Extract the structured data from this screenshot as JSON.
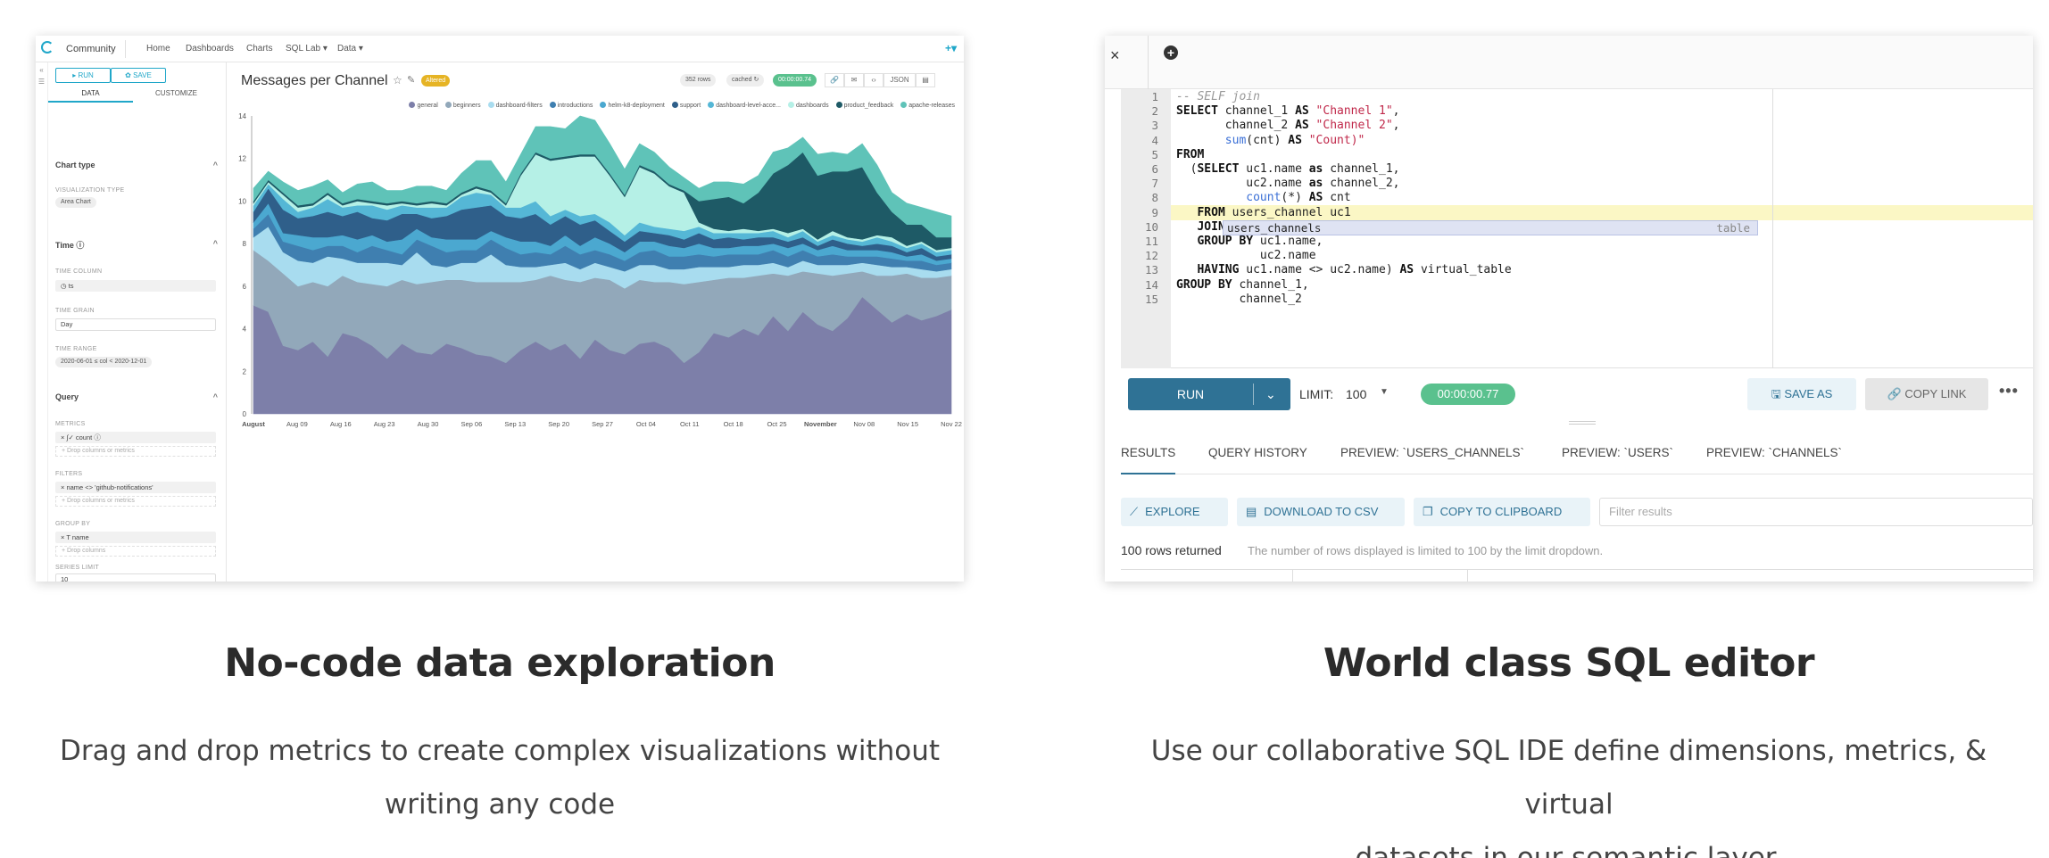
{
  "explore": {
    "nav": {
      "brand": "Community",
      "items": [
        "Home",
        "Dashboards",
        "Charts",
        "SQL Lab ▾",
        "Data ▾"
      ],
      "plus": "+▾"
    },
    "rail": [
      "«",
      "☰"
    ],
    "sidebar": {
      "run": "▸ RUN",
      "save": "✿ SAVE",
      "tabs": [
        "DATA",
        "CUSTOMIZE"
      ],
      "chart_type_header": "Chart type",
      "viz_type_label": "VISUALIZATION TYPE",
      "viz_type": "Area Chart",
      "time_header": "Time ⓘ",
      "time_column_label": "TIME COLUMN",
      "time_column": "◷ ts",
      "time_grain_label": "TIME GRAIN",
      "time_grain": "Day",
      "time_range_label": "TIME RANGE",
      "time_range": "2020-06-01 ≤ col < 2020-12-01",
      "query_header": "Query",
      "metrics_label": "METRICS",
      "metric": "× ∫✓ count ⓘ",
      "metrics_drop": "+ Drop columns or metrics",
      "filters_label": "FILTERS",
      "filter": "× name <> 'github-notifications'",
      "filters_drop": "+ Drop columns or metrics",
      "group_by_label": "GROUP BY",
      "group_by": "× T name",
      "group_drop": "+ Drop columns",
      "series_limit_label": "SERIES LIMIT",
      "series_limit": "10"
    },
    "chart_header": {
      "title": "Messages per Channel",
      "altered": "Altered",
      "rows": "352 rows",
      "cached": "cached ↻",
      "timer": "00:00:00.74",
      "icons": [
        "🔗",
        "✉",
        "‹›",
        "JSON",
        "▤"
      ]
    }
  },
  "chart_data": {
    "type": "area",
    "stacked": true,
    "title": "Messages per Channel",
    "ylim": [
      0,
      14
    ],
    "y_ticks": [
      0,
      2,
      4,
      6,
      8,
      10,
      12,
      14
    ],
    "x_ticks": [
      "August",
      "Aug 09",
      "Aug 16",
      "Aug 23",
      "Aug 30",
      "Sep 06",
      "Sep 13",
      "Sep 20",
      "Sep 27",
      "Oct 04",
      "Oct 11",
      "Oct 18",
      "Oct 25",
      "November",
      "Nov 08",
      "Nov 15",
      "Nov 22"
    ],
    "legend_position": "top-right",
    "series": [
      {
        "name": "general",
        "color": "#7d7fa9",
        "values": [
          5.1,
          4.8,
          3.2,
          3.0,
          3.4,
          2.7,
          3.8,
          3.6,
          3.2,
          2.6,
          3.3,
          2.9,
          2.8,
          3.3,
          3.1,
          2.8,
          2.7,
          2.4,
          3.0,
          3.4,
          3.0,
          3.3,
          2.6,
          3.5,
          3.0,
          2.8,
          3.3,
          3.4,
          3.1,
          2.4,
          2.9,
          3.8,
          3.6,
          4.0,
          3.7,
          4.6,
          3.9,
          4.8,
          4.2,
          3.9,
          4.5,
          5.5,
          4.9,
          4.3,
          4.7,
          4.4,
          4.6,
          4.9
        ]
      },
      {
        "name": "beginners",
        "color": "#92a8ba",
        "values": [
          2.6,
          2.4,
          3.4,
          3.0,
          2.8,
          3.3,
          2.7,
          2.6,
          2.9,
          3.4,
          3.0,
          3.2,
          3.4,
          3.0,
          3.2,
          3.4,
          3.5,
          3.8,
          3.2,
          2.9,
          3.5,
          3.0,
          3.6,
          2.9,
          3.3,
          3.1,
          3.0,
          2.8,
          3.1,
          3.7,
          3.3,
          2.5,
          2.8,
          2.4,
          2.8,
          2.0,
          2.6,
          1.9,
          2.4,
          2.6,
          2.1,
          1.2,
          1.6,
          2.2,
          1.9,
          2.0,
          1.8,
          1.6
        ]
      },
      {
        "name": "dashboard-filters",
        "color": "#a8dcef",
        "values": [
          0.6,
          1.6,
          1.0,
          1.2,
          0.9,
          1.4,
          0.8,
          0.9,
          1.0,
          1.1,
          0.7,
          1.5,
          0.8,
          0.6,
          0.8,
          0.9,
          1.3,
          0.8,
          0.7,
          0.6,
          0.5,
          0.8,
          0.6,
          0.7,
          0.6,
          0.8,
          0.7,
          0.8,
          0.6,
          0.7,
          0.7,
          0.6,
          0.5,
          0.6,
          0.5,
          0.5,
          0.4,
          0.5,
          0.4,
          0.5,
          0.4,
          0.4,
          0.5,
          0.4,
          0.3,
          0.4,
          0.3,
          0.3
        ]
      },
      {
        "name": "introductions",
        "color": "#3f7fb0",
        "values": [
          0.4,
          0.6,
          0.5,
          0.7,
          0.6,
          0.5,
          0.6,
          0.5,
          0.8,
          0.6,
          0.5,
          0.6,
          0.9,
          0.7,
          0.6,
          0.6,
          0.7,
          0.8,
          0.6,
          0.7,
          0.5,
          0.8,
          0.7,
          0.6,
          0.6,
          0.5,
          0.6,
          0.7,
          0.6,
          0.6,
          0.6,
          0.5,
          0.6,
          0.5,
          0.5,
          0.6,
          0.5,
          0.5,
          0.4,
          0.5,
          0.4,
          0.3,
          0.4,
          0.4,
          0.3,
          0.4,
          0.3,
          0.3
        ]
      },
      {
        "name": "helm-k8-deployment",
        "color": "#4ba8d0",
        "values": [
          0.3,
          0.5,
          0.4,
          0.5,
          0.6,
          0.4,
          0.5,
          0.6,
          0.5,
          0.4,
          0.7,
          0.5,
          0.4,
          0.6,
          0.5,
          0.5,
          0.4,
          0.5,
          0.6,
          0.5,
          0.4,
          0.5,
          0.4,
          0.6,
          0.5,
          0.4,
          0.5,
          0.4,
          0.5,
          0.4,
          0.5,
          0.4,
          0.3,
          0.4,
          0.4,
          0.3,
          0.4,
          0.3,
          0.3,
          0.4,
          0.3,
          0.3,
          0.3,
          0.3,
          0.2,
          0.3,
          0.2,
          0.2
        ]
      },
      {
        "name": "support",
        "color": "#2f5f8a",
        "values": [
          0.5,
          0.7,
          1.1,
          0.8,
          1.0,
          1.2,
          0.9,
          1.3,
          0.8,
          1.0,
          1.2,
          0.7,
          0.9,
          1.1,
          1.4,
          1.5,
          1.2,
          1.0,
          1.1,
          1.3,
          1.0,
          0.9,
          1.0,
          0.8,
          0.6,
          0.5,
          0.5,
          0.4,
          0.5,
          0.4,
          0.5,
          0.4,
          0.5,
          0.3,
          0.4,
          0.3,
          0.3,
          0.3,
          0.2,
          0.3,
          0.3,
          0.2,
          0.3,
          0.3,
          0.2,
          0.3,
          0.2,
          0.2
        ]
      },
      {
        "name": "dashboard-level-acce...",
        "color": "#55b7d6",
        "values": [
          0.3,
          0.2,
          0.5,
          0.3,
          0.4,
          0.6,
          0.4,
          0.3,
          0.6,
          0.5,
          0.4,
          0.3,
          0.5,
          0.4,
          0.6,
          0.7,
          0.5,
          0.4,
          0.5,
          0.6,
          0.4,
          0.3,
          0.4,
          0.3,
          0.4,
          0.3,
          0.4,
          0.3,
          0.3,
          0.4,
          0.3,
          0.3,
          0.2,
          0.3,
          0.2,
          0.3,
          0.2,
          0.3,
          0.2,
          0.2,
          0.2,
          0.2,
          0.3,
          0.2,
          0.2,
          0.2,
          0.2,
          0.2
        ]
      },
      {
        "name": "dashboards",
        "color": "#b5f0e6",
        "values": [
          0.1,
          0.1,
          0.2,
          0.2,
          0.1,
          0.2,
          0.1,
          0.2,
          0.1,
          0.2,
          0.1,
          0.1,
          0.2,
          0.1,
          0.1,
          0.2,
          0.1,
          0.1,
          1.5,
          2.2,
          2.6,
          2.4,
          2.8,
          2.7,
          2.2,
          1.8,
          2.6,
          2.5,
          2.0,
          1.8,
          0.2,
          0.2,
          0.1,
          0.2,
          0.1,
          0.1,
          0.2,
          0.1,
          0.1,
          0.2,
          0.1,
          0.1,
          0.1,
          0.2,
          0.1,
          0.1,
          0.1,
          0.1
        ]
      },
      {
        "name": "product_feedback",
        "color": "#1e5a66",
        "values": [
          0.1,
          0.1,
          0.1,
          0.1,
          0.1,
          0.1,
          0.1,
          0.1,
          0.1,
          0.1,
          0.1,
          0.1,
          0.1,
          0.1,
          0.1,
          0.1,
          0.1,
          0.1,
          0.1,
          0.1,
          0.1,
          0.1,
          0.1,
          0.1,
          0.1,
          0.1,
          0.1,
          0.1,
          0.1,
          0.1,
          1.0,
          1.4,
          1.6,
          1.2,
          1.8,
          2.6,
          3.2,
          3.6,
          3.0,
          2.8,
          3.1,
          3.4,
          2.0,
          1.2,
          1.0,
          0.8,
          0.6,
          0.5
        ]
      },
      {
        "name": "apache-releases",
        "color": "#5fc3b8",
        "values": [
          0.6,
          0.4,
          0.5,
          0.7,
          0.8,
          0.6,
          0.5,
          0.7,
          0.9,
          0.6,
          0.5,
          0.8,
          0.7,
          0.6,
          0.9,
          1.2,
          1.4,
          1.0,
          0.9,
          1.2,
          1.5,
          1.3,
          1.8,
          1.6,
          1.4,
          1.2,
          1.0,
          0.9,
          0.8,
          0.6,
          0.6,
          0.8,
          0.7,
          0.9,
          0.8,
          1.0,
          0.8,
          0.7,
          1.0,
          0.9,
          0.8,
          1.1,
          1.3,
          0.9,
          1.0,
          0.8,
          1.2,
          1.0
        ]
      }
    ]
  },
  "sql": {
    "close": "×",
    "add_tab": "+",
    "code_lines": [
      "-- SELF join",
      "SELECT channel_1 AS \"Channel 1\",",
      "       channel_2 AS \"Channel 2\",",
      "       sum(cnt) AS \"Count)\"",
      "FROM",
      "  (SELECT uc1.name as channel_1,",
      "          uc2.name as channel_2,",
      "          count(*) AS cnt",
      "   FROM users_channel uc1",
      "   JOIN",
      "   GROUP BY uc1.name,",
      "            uc2.name",
      "   HAVING uc1.name <> uc2.name) AS virtual_table",
      "GROUP BY channel_1,",
      "         channel_2"
    ],
    "line_numbers": [
      "1",
      "2",
      "3",
      "4",
      "5",
      "6",
      "7",
      "8",
      "9",
      "10",
      "11",
      "12",
      "13",
      "14",
      "15"
    ],
    "autocomplete": {
      "typed": "users_channel",
      "rest": "s",
      "meta": "table"
    },
    "run": "RUN",
    "limit_label": "LIMIT:",
    "limit_value": "100",
    "timer": "00:00:00.77",
    "save_as": "SAVE AS",
    "copy_link": "COPY LINK",
    "more": "•••",
    "tabs": [
      "RESULTS",
      "QUERY HISTORY",
      "PREVIEW: `USERS_CHANNELS`",
      "PREVIEW: `USERS`",
      "PREVIEW: `CHANNELS`"
    ],
    "explore_btn": "EXPLORE",
    "download_btn": "DOWNLOAD TO CSV",
    "copy_btn": "COPY TO CLIPBOARD",
    "filter_placeholder": "Filter results",
    "rows_returned": "100 rows returned",
    "rows_note": "The number of rows displayed is limited to 100 by the limit dropdown."
  },
  "captions": {
    "left_title": "No-code data exploration",
    "left_text_1": "Drag and drop metrics to create complex visualizations without",
    "left_text_2": "writing any code",
    "right_title": "World class SQL editor",
    "right_text_1": "Use our collaborative SQL IDE define dimensions, metrics, & virtual",
    "right_text_2": "datasets in our semantic layer."
  }
}
